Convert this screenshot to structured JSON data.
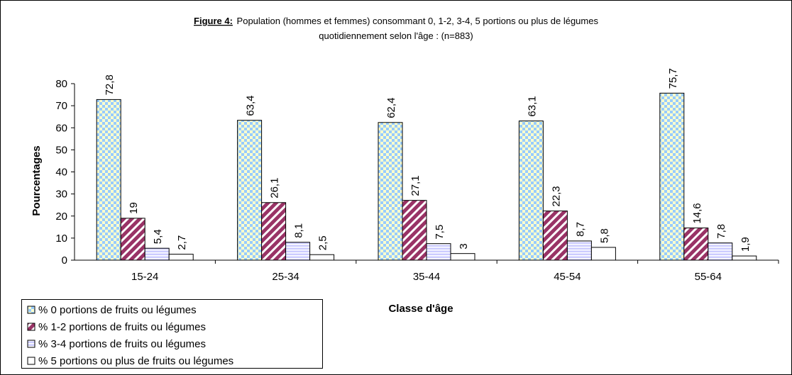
{
  "chart_data": {
    "type": "bar",
    "figure_label": "Figure 4:",
    "title_lines": [
      "Population (hommes et femmes) consommant 0, 1-2, 3-4, 5 portions ou plus de légumes",
      "quotidiennement selon l'âge : (n=883)"
    ],
    "x_label": "Classe d'âge",
    "y_label": "Pourcentages",
    "categories": [
      "15-24",
      "25-34",
      "35-44",
      "45-54",
      "55-64"
    ],
    "series": [
      {
        "name": "% 0 portions de fruits ou légumes",
        "color": "#99ccff",
        "values": [
          72.8,
          63.4,
          62.4,
          63.1,
          75.7
        ],
        "value_labels": [
          "72,8",
          "63,4",
          "62,4",
          "63,1",
          "75,7"
        ]
      },
      {
        "name": "% 1-2 portions de fruits ou légumes",
        "color": "#993366",
        "values": [
          19,
          26.1,
          27.1,
          22.3,
          14.6
        ],
        "value_labels": [
          "19",
          "26,1",
          "27,1",
          "22,3",
          "14,6"
        ]
      },
      {
        "name": "% 3-4 portions de fruits ou légumes",
        "color": "#ccccff",
        "values": [
          5.4,
          8.1,
          7.5,
          8.7,
          7.8
        ],
        "value_labels": [
          "5,4",
          "8,1",
          "7,5",
          "8,7",
          "7,8"
        ]
      },
      {
        "name": "% 5 portions ou plus de fruits ou légumes",
        "color": "#ffffff",
        "values": [
          2.7,
          2.5,
          3,
          5.8,
          1.9
        ],
        "value_labels": [
          "2,7",
          "2,5",
          "3",
          "5,8",
          "1,9"
        ]
      }
    ],
    "ylim": [
      0,
      80
    ],
    "yticks": [
      0,
      10,
      20,
      30,
      40,
      50,
      60,
      70,
      80
    ],
    "grid": false
  }
}
